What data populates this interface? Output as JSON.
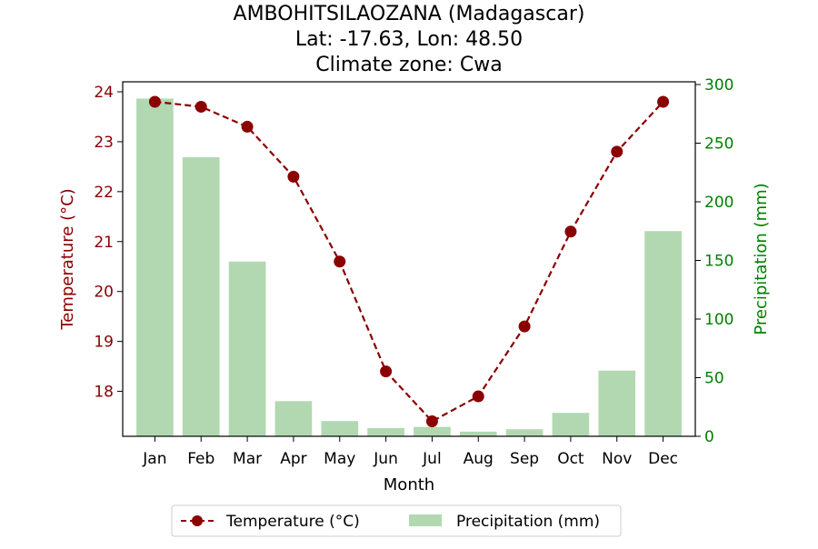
{
  "chart_data": {
    "type": "bar+line",
    "title_lines": [
      "AMBOHITSILAOZANA (Madagascar)",
      "Lat: -17.63, Lon: 48.50",
      "Climate zone: Cwa"
    ],
    "categories": [
      "Jan",
      "Feb",
      "Mar",
      "Apr",
      "May",
      "Jun",
      "Jul",
      "Aug",
      "Sep",
      "Oct",
      "Nov",
      "Dec"
    ],
    "xlabel": "Month",
    "y_left": {
      "label": "Temperature (°C)",
      "ticks": [
        18,
        19,
        20,
        21,
        22,
        23,
        24
      ],
      "range": [
        17.1,
        24.2
      ],
      "color": "#8b0000"
    },
    "y_right": {
      "label": "Precipitation (mm)",
      "ticks": [
        0,
        50,
        100,
        150,
        200,
        250,
        300
      ],
      "range": [
        0,
        300
      ],
      "color": "#008000"
    },
    "series": [
      {
        "name": "Temperature (°C)",
        "kind": "line",
        "axis": "left",
        "color": "#8b0000",
        "values": [
          23.8,
          23.7,
          23.3,
          22.3,
          20.6,
          18.4,
          17.4,
          17.9,
          19.3,
          21.2,
          22.8,
          23.8
        ]
      },
      {
        "name": "Precipitation (mm)",
        "kind": "bar",
        "axis": "right",
        "color": "#b2d8b2",
        "values": [
          288,
          238,
          149,
          30,
          13,
          7,
          8,
          4,
          6,
          20,
          56,
          175
        ]
      }
    ],
    "legend_position": "bottom-center",
    "grid": false
  }
}
